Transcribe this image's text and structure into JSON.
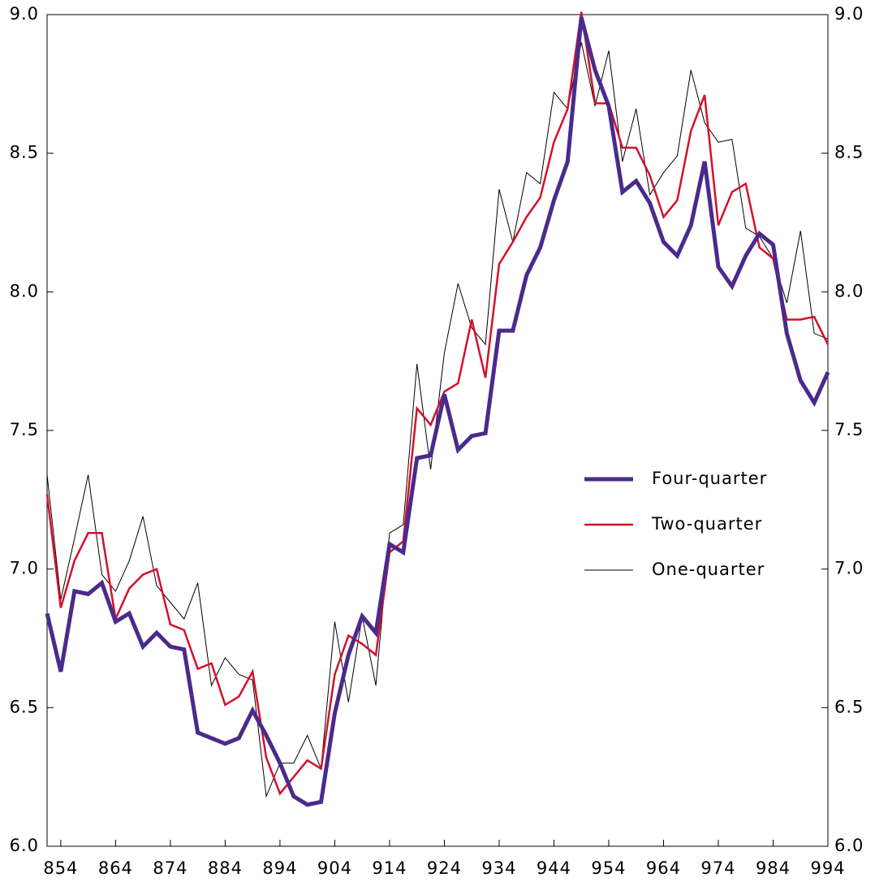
{
  "chart_data": {
    "type": "line",
    "x": [
      851.5,
      854,
      856.5,
      859,
      861.5,
      864,
      866.5,
      869,
      871.5,
      874,
      876.5,
      879,
      881.5,
      884,
      886.5,
      889,
      891.5,
      894,
      896.5,
      899,
      901.5,
      904,
      906.5,
      909,
      911.5,
      914,
      916.5,
      919,
      921.5,
      924,
      926.5,
      929,
      931.5,
      934,
      936.5,
      939,
      941.5,
      944,
      946.5,
      949,
      951.5,
      954,
      956.5,
      959,
      961.5,
      964,
      966.5,
      969,
      971.5,
      974,
      976.5,
      979,
      981.5,
      984,
      986.5,
      989,
      991.5,
      994
    ],
    "series": [
      {
        "name": "Four-quarter",
        "color": "#4b2a8c",
        "width": 5,
        "values": [
          6.84,
          6.63,
          6.92,
          6.91,
          6.95,
          6.81,
          6.84,
          6.72,
          6.77,
          6.72,
          6.71,
          6.41,
          6.39,
          6.37,
          6.39,
          6.49,
          6.4,
          6.3,
          6.18,
          6.15,
          6.16,
          6.48,
          6.69,
          6.83,
          6.77,
          7.09,
          7.06,
          7.4,
          7.41,
          7.63,
          7.43,
          7.48,
          7.49,
          7.86,
          7.86,
          8.06,
          8.16,
          8.33,
          8.47,
          8.99,
          8.8,
          8.67,
          8.36,
          8.4,
          8.32,
          8.18,
          8.13,
          8.24,
          8.47,
          8.09,
          8.02,
          8.13,
          8.21,
          8.17,
          7.85,
          7.68,
          7.6,
          7.71
        ]
      },
      {
        "name": "Two-quarter",
        "color": "#d4102c",
        "width": 2.5,
        "values": [
          7.27,
          6.86,
          7.03,
          7.13,
          7.13,
          6.82,
          6.93,
          6.98,
          7.0,
          6.8,
          6.78,
          6.64,
          6.66,
          6.51,
          6.54,
          6.63,
          6.32,
          6.19,
          6.25,
          6.31,
          6.28,
          6.62,
          6.76,
          6.73,
          6.69,
          7.06,
          7.1,
          7.58,
          7.52,
          7.64,
          7.67,
          7.9,
          7.69,
          8.1,
          8.18,
          8.27,
          8.34,
          8.54,
          8.66,
          9.01,
          8.68,
          8.68,
          8.52,
          8.52,
          8.42,
          8.27,
          8.33,
          8.58,
          8.71,
          8.24,
          8.36,
          8.39,
          8.16,
          8.12,
          7.9,
          7.9,
          7.91,
          7.81
        ]
      },
      {
        "name": "One-quarter",
        "color": "#000000",
        "width": 1,
        "values": [
          7.34,
          6.89,
          7.11,
          7.34,
          6.98,
          6.92,
          7.03,
          7.19,
          6.94,
          6.88,
          6.82,
          6.95,
          6.58,
          6.68,
          6.62,
          6.6,
          6.18,
          6.3,
          6.3,
          6.4,
          6.28,
          6.81,
          6.52,
          6.83,
          6.58,
          7.13,
          7.16,
          7.74,
          7.36,
          7.78,
          8.03,
          7.87,
          7.81,
          8.37,
          8.18,
          8.43,
          8.39,
          8.72,
          8.66,
          8.9,
          8.67,
          8.87,
          8.47,
          8.66,
          8.35,
          8.43,
          8.49,
          8.8,
          8.61,
          8.54,
          8.55,
          8.23,
          8.2,
          8.12,
          7.96,
          8.22,
          7.85,
          7.83
        ]
      }
    ],
    "xlim": [
      851.5,
      994
    ],
    "xticks": [
      854,
      864,
      874,
      884,
      894,
      904,
      914,
      924,
      934,
      944,
      954,
      964,
      974,
      984,
      994
    ],
    "ylim": [
      6,
      9
    ],
    "yticks": [
      {
        "value": 6,
        "label": "6.0"
      },
      {
        "value": 6.5,
        "label": "6.5"
      },
      {
        "value": 7,
        "label": "7.0"
      },
      {
        "value": 7.5,
        "label": "7.5"
      },
      {
        "value": 8,
        "label": "8.0"
      },
      {
        "value": 8.5,
        "label": "8.5"
      },
      {
        "value": 9,
        "label": "9.0"
      }
    ],
    "y2lim": [
      6,
      9
    ],
    "y2ticks": [
      {
        "value": 6,
        "label": "6.0"
      },
      {
        "value": 6.5,
        "label": "6.5"
      },
      {
        "value": 7,
        "label": "7.0"
      },
      {
        "value": 7.5,
        "label": "7.5"
      },
      {
        "value": 8,
        "label": "8.0"
      },
      {
        "value": 8.5,
        "label": "8.5"
      },
      {
        "value": 9,
        "label": "9.0"
      }
    ],
    "legend": "right",
    "grid": false
  }
}
